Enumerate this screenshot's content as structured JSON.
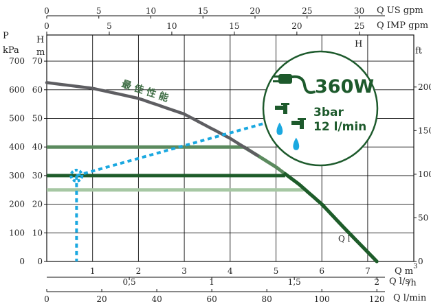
{
  "chart_data": {
    "type": "line",
    "title": "",
    "x_axis_bottom": {
      "label": "Q m³/h",
      "label_main": "Q m",
      "label_sup": "3",
      "label_sub": "/h",
      "min": 0,
      "max": 8,
      "ticks": [
        "1",
        "2",
        "3",
        "4",
        "5",
        "6",
        "7"
      ]
    },
    "x_axis_ls": {
      "label": "Q l/s",
      "ticks": [
        {
          "v": 0.5,
          "label": "0,5"
        },
        {
          "v": 1,
          "label": "1"
        },
        {
          "v": 1.5,
          "label": "1,5"
        },
        {
          "v": 2,
          "label": "2"
        }
      ]
    },
    "x_axis_lmin": {
      "label": "Q l/min",
      "ticks": [
        "0",
        "20",
        "40",
        "60",
        "80",
        "100",
        "120"
      ]
    },
    "x_axis_usgpm": {
      "label": "Q US gpm",
      "ticks": [
        "0",
        "5",
        "10",
        "15",
        "20",
        "25",
        "30"
      ]
    },
    "x_axis_impgpm": {
      "label": "Q IMP gpm",
      "ticks": [
        "0",
        "5",
        "10",
        "15",
        "20",
        "25"
      ]
    },
    "y_axis_m": {
      "label": "H",
      "unit": "m",
      "min": 0,
      "max": 70,
      "ticks": [
        "0",
        "10",
        "20",
        "30",
        "40",
        "50",
        "60",
        "70"
      ]
    },
    "y_axis_kpa": {
      "label": "P",
      "unit": "kPa",
      "ticks": [
        "0",
        "100",
        "200",
        "300",
        "400",
        "500",
        "600",
        "700"
      ]
    },
    "y_axis_ft": {
      "label": "ft",
      "top_label": "H",
      "ticks": [
        "0",
        "50",
        "100",
        "150",
        "200"
      ]
    },
    "grid": true,
    "pump_curve": {
      "name": "最 佳 性 能",
      "points": [
        [
          0,
          62.5
        ],
        [
          1,
          60.5
        ],
        [
          2,
          57
        ],
        [
          3,
          51.5
        ],
        [
          4,
          43
        ],
        [
          4.5,
          38
        ],
        [
          5,
          33
        ],
        [
          5.5,
          27
        ],
        [
          6,
          20
        ],
        [
          6.5,
          11.5
        ],
        [
          7.2,
          0
        ]
      ]
    },
    "operating_lines": [
      {
        "name": "40",
        "y": 40,
        "x_end": 4.3,
        "color": "#5b8a5e"
      },
      {
        "name": "30",
        "y": 30,
        "x_end": 5.2,
        "color": "#1e5c2a"
      },
      {
        "name": "25",
        "y": 25,
        "x_end": 5.6,
        "color": "#a6c7a3"
      }
    ],
    "annotation": {
      "point": [
        0.65,
        30
      ],
      "line_end": [
        4.8,
        48.5
      ],
      "color": "#1aa8e0"
    },
    "curve_label": "Q l",
    "badge": {
      "power": "360W",
      "pressure": "3bar",
      "flow": "12 l/min"
    }
  }
}
